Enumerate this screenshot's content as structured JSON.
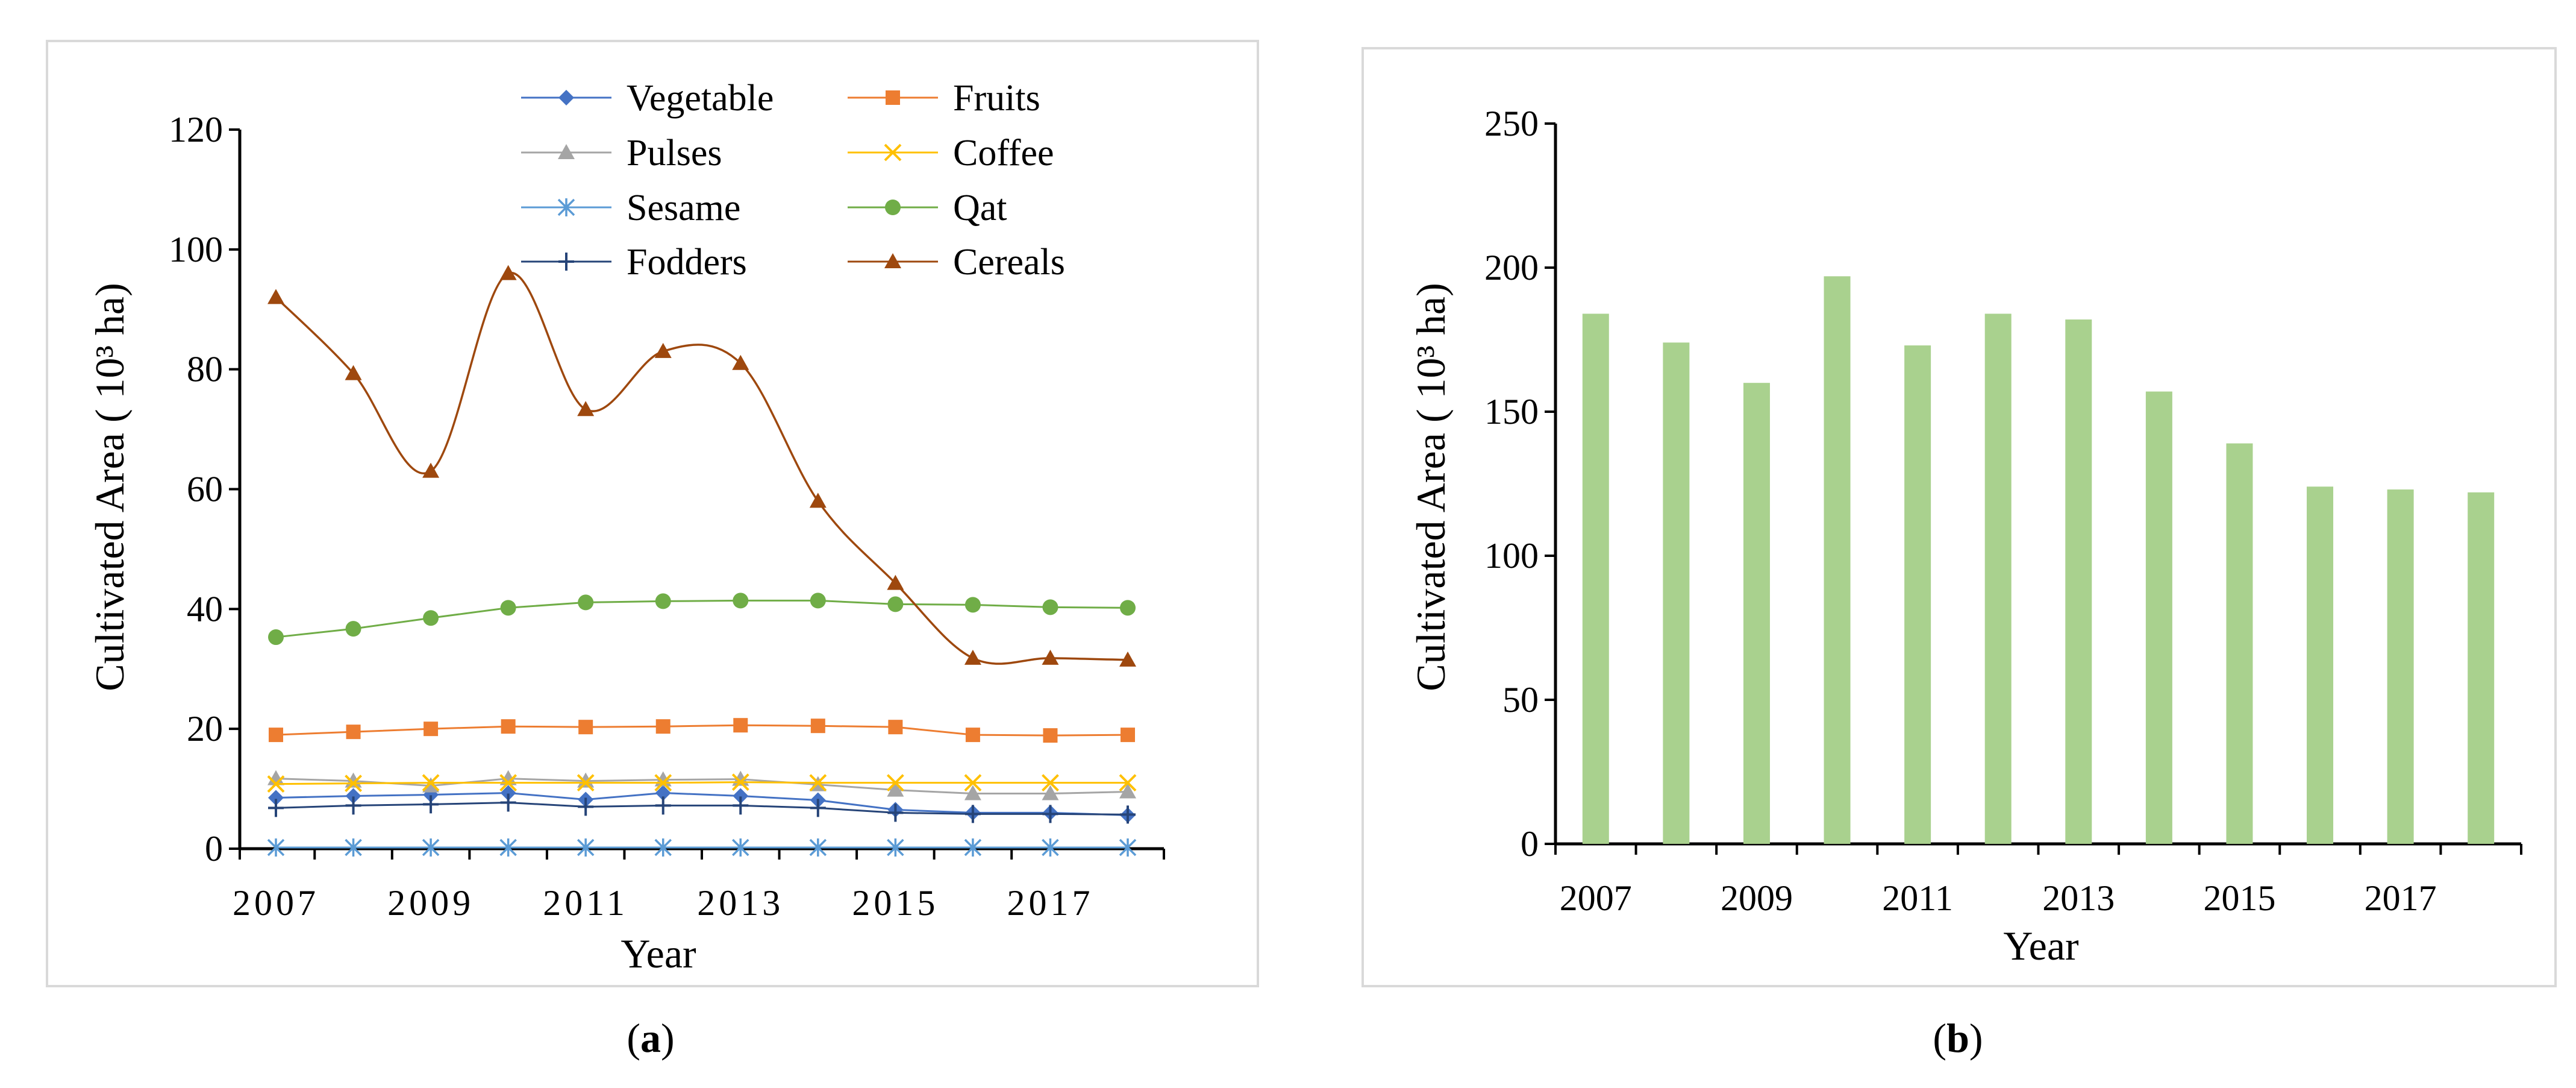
{
  "chart_data": [
    {
      "panel": "a",
      "type": "line",
      "caption": "(a)",
      "caption_letter": "a",
      "xlabel": "Year",
      "ylabel": "Cultivated Area ( 10³ ha)",
      "ylim": [
        0,
        120
      ],
      "yticks": [
        0,
        20,
        40,
        60,
        80,
        100,
        120
      ],
      "x": [
        2007,
        2008,
        2009,
        2010,
        2011,
        2012,
        2013,
        2014,
        2015,
        2016,
        2017,
        2018
      ],
      "xtick_labels": [
        "2007",
        "2009",
        "2011",
        "2013",
        "2015",
        "2017"
      ],
      "legend_position": "top-right",
      "series": [
        {
          "name": "Vegetable",
          "color": "#4472c4",
          "marker": "diamond",
          "smooth": false,
          "values": [
            8.5,
            8.8,
            9.0,
            9.3,
            8.2,
            9.3,
            8.8,
            8.1,
            6.5,
            6.0,
            6.0,
            5.6
          ]
        },
        {
          "name": "Fruits",
          "color": "#ed7d31",
          "marker": "square",
          "smooth": false,
          "values": [
            19.0,
            19.5,
            20.0,
            20.4,
            20.3,
            20.4,
            20.6,
            20.5,
            20.3,
            19.0,
            18.9,
            19.0
          ]
        },
        {
          "name": "Pulses",
          "color": "#a5a5a5",
          "marker": "triangle",
          "smooth": false,
          "values": [
            11.7,
            11.3,
            10.5,
            11.7,
            11.3,
            11.5,
            11.6,
            10.7,
            9.8,
            9.2,
            9.2,
            9.5
          ]
        },
        {
          "name": "Coffee",
          "color": "#ffc000",
          "marker": "x",
          "smooth": false,
          "values": [
            10.8,
            10.9,
            11.0,
            11.0,
            11.0,
            11.0,
            11.1,
            11.0,
            11.0,
            11.0,
            11.0,
            11.0
          ]
        },
        {
          "name": "Sesame",
          "color": "#5b9bd5",
          "marker": "star",
          "smooth": false,
          "values": [
            0.2,
            0.2,
            0.2,
            0.2,
            0.2,
            0.2,
            0.2,
            0.2,
            0.2,
            0.2,
            0.2,
            0.2
          ]
        },
        {
          "name": "Qat",
          "color": "#70ad47",
          "marker": "circle",
          "smooth": false,
          "values": [
            35.3,
            36.7,
            38.5,
            40.2,
            41.1,
            41.3,
            41.4,
            41.4,
            40.8,
            40.7,
            40.3,
            40.2
          ]
        },
        {
          "name": "Fodders",
          "color": "#264478",
          "marker": "plus",
          "smooth": false,
          "values": [
            6.8,
            7.2,
            7.4,
            7.7,
            7.0,
            7.2,
            7.2,
            6.8,
            6.0,
            5.8,
            5.8,
            5.7
          ]
        },
        {
          "name": "Cereals",
          "color": "#9e480e",
          "marker": "triangle",
          "smooth": true,
          "values": [
            92.0,
            79.3,
            63.0,
            96.0,
            73.3,
            83.0,
            81.0,
            58.0,
            44.3,
            31.8,
            31.8,
            31.5
          ]
        }
      ]
    },
    {
      "panel": "b",
      "type": "bar",
      "caption": "(b)",
      "caption_letter": "b",
      "xlabel": "Year",
      "ylabel": "Cultivated Area ( 10³ ha)",
      "ylim": [
        0,
        250
      ],
      "yticks": [
        0,
        50,
        100,
        150,
        200,
        250
      ],
      "categories": [
        2007,
        2008,
        2009,
        2010,
        2011,
        2012,
        2013,
        2014,
        2015,
        2016,
        2017,
        2018
      ],
      "xtick_labels": [
        "2007",
        "2009",
        "2011",
        "2013",
        "2015",
        "2017"
      ],
      "bar_color": "#a9d18e",
      "values": [
        184,
        174,
        160,
        197,
        173,
        184,
        182,
        157,
        139,
        124,
        123,
        122
      ]
    }
  ]
}
